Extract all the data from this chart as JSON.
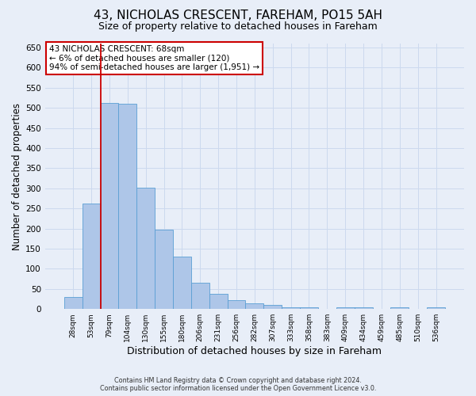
{
  "title1": "43, NICHOLAS CRESCENT, FAREHAM, PO15 5AH",
  "title2": "Size of property relative to detached houses in Fareham",
  "xlabel": "Distribution of detached houses by size in Fareham",
  "ylabel": "Number of detached properties",
  "footer1": "Contains HM Land Registry data © Crown copyright and database right 2024.",
  "footer2": "Contains public sector information licensed under the Open Government Licence v3.0.",
  "categories": [
    "28sqm",
    "53sqm",
    "79sqm",
    "104sqm",
    "130sqm",
    "155sqm",
    "180sqm",
    "206sqm",
    "231sqm",
    "256sqm",
    "282sqm",
    "307sqm",
    "333sqm",
    "358sqm",
    "383sqm",
    "409sqm",
    "434sqm",
    "459sqm",
    "485sqm",
    "510sqm",
    "536sqm"
  ],
  "values": [
    30,
    262,
    512,
    510,
    302,
    197,
    130,
    65,
    38,
    22,
    14,
    10,
    5,
    4,
    0,
    5,
    4,
    0,
    4,
    0,
    4
  ],
  "bar_color": "#aec6e8",
  "bar_edge_color": "#5a9fd4",
  "grid_color": "#ccd9ee",
  "annotation_line1": "43 NICHOLAS CRESCENT: 68sqm",
  "annotation_line2": "← 6% of detached houses are smaller (120)",
  "annotation_line3": "94% of semi-detached houses are larger (1,951) →",
  "annotation_box_color": "#ffffff",
  "annotation_box_edge_color": "#cc0000",
  "redline_color": "#cc0000",
  "redline_x": 1.5,
  "ylim": [
    0,
    660
  ],
  "yticks": [
    0,
    50,
    100,
    150,
    200,
    250,
    300,
    350,
    400,
    450,
    500,
    550,
    600,
    650
  ],
  "background_color": "#e8eef8",
  "title1_fontsize": 11,
  "title2_fontsize": 9,
  "xlabel_fontsize": 9,
  "ylabel_fontsize": 8.5
}
